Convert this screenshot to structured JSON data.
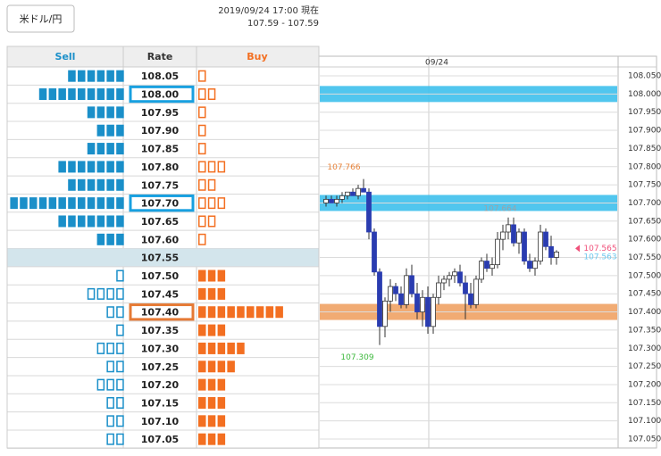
{
  "header": {
    "pair_button": "米ドル/円",
    "timestamp": "2019/09/24 17:00 現在",
    "price_range": "107.59 - 107.59"
  },
  "table": {
    "headers": [
      "Sell",
      "Rate",
      "Buy"
    ],
    "rows": [
      {
        "rate": "108.05",
        "sell": 6,
        "buy": 1
      },
      {
        "rate": "108.00",
        "sell": 9,
        "buy": 2,
        "highlight": "sell"
      },
      {
        "rate": "107.95",
        "sell": 4,
        "buy": 1
      },
      {
        "rate": "107.90",
        "sell": 3,
        "buy": 1
      },
      {
        "rate": "107.85",
        "sell": 4,
        "buy": 1
      },
      {
        "rate": "107.80",
        "sell": 7,
        "buy": 3
      },
      {
        "rate": "107.75",
        "sell": 6,
        "buy": 2
      },
      {
        "rate": "107.70",
        "sell": 12,
        "buy": 3,
        "highlight": "sell"
      },
      {
        "rate": "107.65",
        "sell": 7,
        "buy": 2
      },
      {
        "rate": "107.60",
        "sell": 3,
        "buy": 1
      },
      {
        "rate": "107.55",
        "sell": 0,
        "buy": 0,
        "current": true
      },
      {
        "rate": "107.50",
        "sell": 1,
        "buy": 3
      },
      {
        "rate": "107.45",
        "sell": 4,
        "buy": 3
      },
      {
        "rate": "107.40",
        "sell": 2,
        "buy": 9,
        "highlight": "buy"
      },
      {
        "rate": "107.35",
        "sell": 1,
        "buy": 3
      },
      {
        "rate": "107.30",
        "sell": 3,
        "buy": 5
      },
      {
        "rate": "107.25",
        "sell": 2,
        "buy": 4
      },
      {
        "rate": "107.20",
        "sell": 3,
        "buy": 3
      },
      {
        "rate": "107.15",
        "sell": 2,
        "buy": 3
      },
      {
        "rate": "107.10",
        "sell": 2,
        "buy": 3
      },
      {
        "rate": "107.05",
        "sell": 2,
        "buy": 3
      }
    ]
  },
  "chart_data": {
    "type": "candlestick",
    "date_label": "09/24",
    "ylim": [
      107.05,
      108.05
    ],
    "yticks": [
      {
        "value": 108.05,
        "label": "108.050"
      },
      {
        "value": 108.0,
        "label": "108.000"
      },
      {
        "value": 107.95,
        "label": "107.950"
      },
      {
        "value": 107.9,
        "label": "107.900"
      },
      {
        "value": 107.85,
        "label": "107.850"
      },
      {
        "value": 107.8,
        "label": "107.800"
      },
      {
        "value": 107.75,
        "label": "107.750"
      },
      {
        "value": 107.7,
        "label": "107.700"
      },
      {
        "value": 107.65,
        "label": "107.650"
      },
      {
        "value": 107.6,
        "label": "107.600"
      },
      {
        "value": 107.55,
        "label": "107.550"
      },
      {
        "value": 107.5,
        "label": "107.500"
      },
      {
        "value": 107.45,
        "label": "107.450"
      },
      {
        "value": 107.4,
        "label": "107.400"
      },
      {
        "value": 107.35,
        "label": "107.350"
      },
      {
        "value": 107.3,
        "label": "107.300"
      },
      {
        "value": 107.25,
        "label": "107.250"
      },
      {
        "value": 107.2,
        "label": "107.200"
      },
      {
        "value": 107.15,
        "label": "107.150"
      },
      {
        "value": 107.1,
        "label": "107.100"
      },
      {
        "value": 107.05,
        "label": "107.050"
      }
    ],
    "grid": true,
    "up_color": "#ffffff",
    "down_color": "#2a3cb0",
    "bands": [
      {
        "value": 108.0,
        "color": "#3ec0ec"
      },
      {
        "value": 107.7,
        "color": "#3ec0ec"
      },
      {
        "value": 107.4,
        "color": "#f0a264"
      }
    ],
    "annotations": [
      {
        "value": 107.766,
        "color": "#e8833a"
      },
      {
        "value": 107.309,
        "color": "#3cb83c"
      },
      {
        "value": 107.664,
        "color": "#9aa4aa"
      },
      {
        "value": 107.565,
        "color": "#f0507a"
      },
      {
        "value": 107.563,
        "color": "#6cc8ee"
      }
    ],
    "candles": [
      {
        "open": 107.7,
        "high": 107.72,
        "low": 107.69,
        "close": 107.71
      },
      {
        "open": 107.71,
        "high": 107.72,
        "low": 107.7,
        "close": 107.7
      },
      {
        "open": 107.7,
        "high": 107.72,
        "low": 107.69,
        "close": 107.71
      },
      {
        "open": 107.71,
        "high": 107.73,
        "low": 107.7,
        "close": 107.72
      },
      {
        "open": 107.72,
        "high": 107.73,
        "low": 107.71,
        "close": 107.73
      },
      {
        "open": 107.73,
        "high": 107.74,
        "low": 107.72,
        "close": 107.72
      },
      {
        "open": 107.72,
        "high": 107.75,
        "low": 107.71,
        "close": 107.74
      },
      {
        "open": 107.74,
        "high": 107.766,
        "low": 107.73,
        "close": 107.73
      },
      {
        "open": 107.73,
        "high": 107.74,
        "low": 107.6,
        "close": 107.62
      },
      {
        "open": 107.62,
        "high": 107.63,
        "low": 107.5,
        "close": 107.51
      },
      {
        "open": 107.51,
        "high": 107.52,
        "low": 107.309,
        "close": 107.36
      },
      {
        "open": 107.36,
        "high": 107.44,
        "low": 107.33,
        "close": 107.43
      },
      {
        "open": 107.43,
        "high": 107.49,
        "low": 107.4,
        "close": 107.47
      },
      {
        "open": 107.47,
        "high": 107.48,
        "low": 107.43,
        "close": 107.45
      },
      {
        "open": 107.45,
        "high": 107.47,
        "low": 107.41,
        "close": 107.42
      },
      {
        "open": 107.42,
        "high": 107.52,
        "low": 107.41,
        "close": 107.5
      },
      {
        "open": 107.5,
        "high": 107.53,
        "low": 107.44,
        "close": 107.45
      },
      {
        "open": 107.45,
        "high": 107.48,
        "low": 107.38,
        "close": 107.4
      },
      {
        "open": 107.4,
        "high": 107.46,
        "low": 107.36,
        "close": 107.44
      },
      {
        "open": 107.44,
        "high": 107.47,
        "low": 107.34,
        "close": 107.36
      },
      {
        "open": 107.36,
        "high": 107.45,
        "low": 107.34,
        "close": 107.44
      },
      {
        "open": 107.44,
        "high": 107.5,
        "low": 107.42,
        "close": 107.48
      },
      {
        "open": 107.48,
        "high": 107.5,
        "low": 107.46,
        "close": 107.49
      },
      {
        "open": 107.49,
        "high": 107.51,
        "low": 107.47,
        "close": 107.5
      },
      {
        "open": 107.5,
        "high": 107.52,
        "low": 107.48,
        "close": 107.51
      },
      {
        "open": 107.51,
        "high": 107.53,
        "low": 107.47,
        "close": 107.48
      },
      {
        "open": 107.48,
        "high": 107.5,
        "low": 107.38,
        "close": 107.45
      },
      {
        "open": 107.45,
        "high": 107.48,
        "low": 107.41,
        "close": 107.42
      },
      {
        "open": 107.42,
        "high": 107.5,
        "low": 107.41,
        "close": 107.49
      },
      {
        "open": 107.49,
        "high": 107.55,
        "low": 107.48,
        "close": 107.54
      },
      {
        "open": 107.54,
        "high": 107.56,
        "low": 107.51,
        "close": 107.52
      },
      {
        "open": 107.52,
        "high": 107.55,
        "low": 107.5,
        "close": 107.53
      },
      {
        "open": 107.53,
        "high": 107.62,
        "low": 107.52,
        "close": 107.6
      },
      {
        "open": 107.6,
        "high": 107.64,
        "low": 107.57,
        "close": 107.62
      },
      {
        "open": 107.62,
        "high": 107.66,
        "low": 107.6,
        "close": 107.64
      },
      {
        "open": 107.64,
        "high": 107.66,
        "low": 107.58,
        "close": 107.59
      },
      {
        "open": 107.59,
        "high": 107.63,
        "low": 107.56,
        "close": 107.62
      },
      {
        "open": 107.62,
        "high": 107.63,
        "low": 107.53,
        "close": 107.54
      },
      {
        "open": 107.54,
        "high": 107.56,
        "low": 107.51,
        "close": 107.52
      },
      {
        "open": 107.52,
        "high": 107.55,
        "low": 107.5,
        "close": 107.54
      },
      {
        "open": 107.54,
        "high": 107.64,
        "low": 107.53,
        "close": 107.62
      },
      {
        "open": 107.62,
        "high": 107.63,
        "low": 107.57,
        "close": 107.58
      },
      {
        "open": 107.58,
        "high": 107.61,
        "low": 107.53,
        "close": 107.55
      },
      {
        "open": 107.55,
        "high": 107.57,
        "low": 107.53,
        "close": 107.565
      }
    ]
  }
}
